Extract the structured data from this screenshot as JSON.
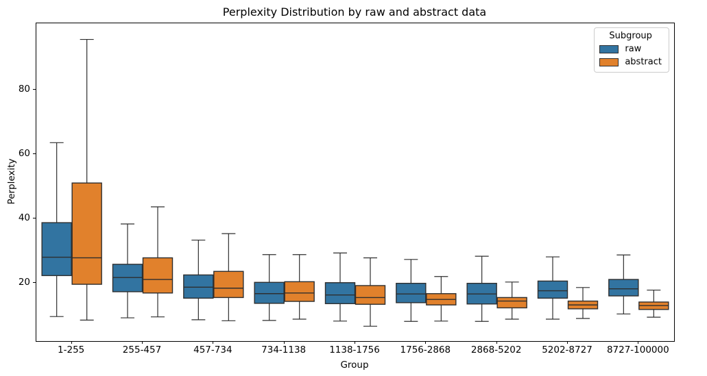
{
  "chart_data": {
    "type": "boxplot",
    "title": "Perplexity Distribution by raw and abstract data",
    "xlabel": "Group",
    "ylabel": "Perplexity",
    "ylim": [
      2,
      100.5
    ],
    "yticks": [
      20,
      40,
      60,
      80
    ],
    "grid": false,
    "legend": {
      "title": "Subgroup",
      "position": "upper right"
    },
    "edge_color": "#2e2e2e",
    "categories": [
      "1-255",
      "255-457",
      "457-734",
      "734-1138",
      "1138-1756",
      "1756-2868",
      "2868-5202",
      "5202-8727",
      "8727-100000"
    ],
    "series": [
      {
        "name": "raw",
        "color": "#3274a1",
        "boxes": [
          {
            "whislo": 9.6,
            "q1": 22.3,
            "med": 28.0,
            "q3": 38.7,
            "whishi": 63.5
          },
          {
            "whislo": 9.2,
            "q1": 17.3,
            "med": 21.7,
            "q3": 25.8,
            "whishi": 38.3
          },
          {
            "whislo": 8.6,
            "q1": 15.3,
            "med": 18.7,
            "q3": 22.5,
            "whishi": 33.3
          },
          {
            "whislo": 8.4,
            "q1": 13.7,
            "med": 16.7,
            "q3": 20.2,
            "whishi": 28.8
          },
          {
            "whislo": 8.2,
            "q1": 13.6,
            "med": 16.3,
            "q3": 20.1,
            "whishi": 29.3
          },
          {
            "whislo": 8.1,
            "q1": 13.9,
            "med": 16.6,
            "q3": 19.9,
            "whishi": 27.3
          },
          {
            "whislo": 8.1,
            "q1": 13.5,
            "med": 16.6,
            "q3": 19.9,
            "whishi": 28.3
          },
          {
            "whislo": 8.8,
            "q1": 15.3,
            "med": 17.6,
            "q3": 20.6,
            "whishi": 28.1
          },
          {
            "whislo": 10.4,
            "q1": 16.0,
            "med": 18.2,
            "q3": 21.1,
            "whishi": 28.7
          }
        ]
      },
      {
        "name": "abstract",
        "color": "#e1812c",
        "boxes": [
          {
            "whislo": 8.5,
            "q1": 19.6,
            "med": 27.8,
            "q3": 51.0,
            "whishi": 95.5
          },
          {
            "whislo": 9.5,
            "q1": 16.9,
            "med": 21.1,
            "q3": 27.8,
            "whishi": 43.6
          },
          {
            "whislo": 8.3,
            "q1": 15.5,
            "med": 18.4,
            "q3": 23.6,
            "whishi": 35.3
          },
          {
            "whislo": 8.8,
            "q1": 14.3,
            "med": 16.9,
            "q3": 20.4,
            "whishi": 28.8
          },
          {
            "whislo": 6.6,
            "q1": 13.4,
            "med": 15.5,
            "q3": 19.2,
            "whishi": 27.8
          },
          {
            "whislo": 8.2,
            "q1": 13.2,
            "med": 14.9,
            "q3": 16.7,
            "whishi": 22.0
          },
          {
            "whislo": 8.8,
            "q1": 12.3,
            "med": 14.4,
            "q3": 15.5,
            "whishi": 20.3
          },
          {
            "whislo": 9.0,
            "q1": 12.0,
            "med": 13.2,
            "q3": 14.4,
            "whishi": 18.6
          },
          {
            "whislo": 9.4,
            "q1": 11.8,
            "med": 13.0,
            "q3": 14.1,
            "whishi": 17.8
          }
        ]
      }
    ]
  }
}
